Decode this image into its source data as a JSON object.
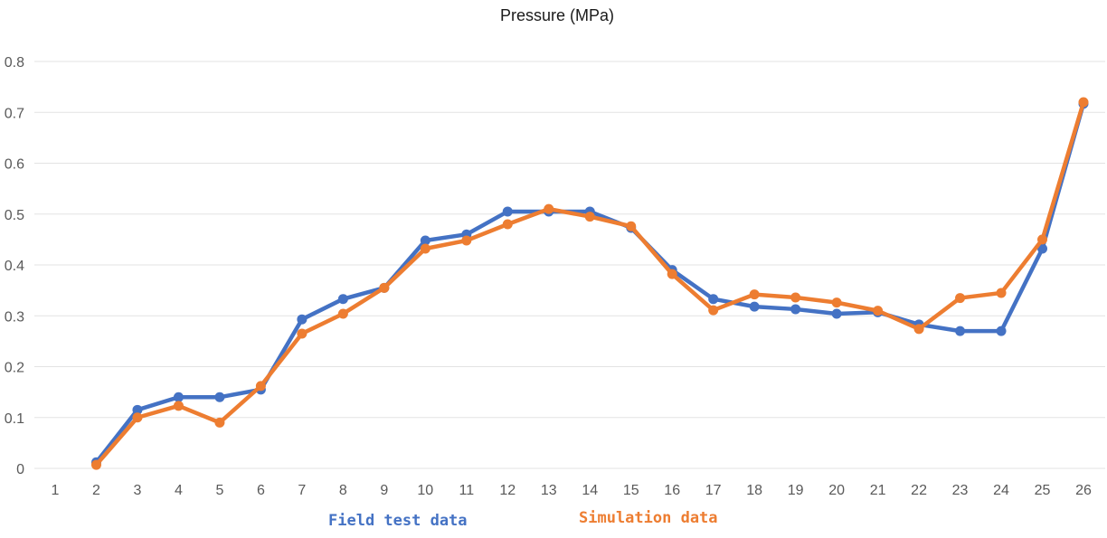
{
  "chart_data": {
    "type": "line",
    "title": "Pressure (MPa)",
    "xlabel": "",
    "ylabel": "",
    "categories": [
      "1",
      "2",
      "3",
      "4",
      "5",
      "6",
      "7",
      "8",
      "9",
      "10",
      "11",
      "12",
      "13",
      "14",
      "15",
      "16",
      "17",
      "18",
      "19",
      "20",
      "21",
      "22",
      "23",
      "24",
      "25",
      "26"
    ],
    "yticks": [
      "0",
      "0.1",
      "0.2",
      "0.3",
      "0.4",
      "0.5",
      "0.6",
      "0.7",
      "0.8"
    ],
    "ylim": [
      0,
      0.8
    ],
    "grid": true,
    "legend_position": "bottom",
    "series": [
      {
        "name": "Field test data",
        "color": "#4472c4",
        "values": [
          null,
          0.012,
          0.115,
          0.14,
          0.14,
          0.155,
          0.293,
          0.333,
          0.355,
          0.448,
          0.46,
          0.505,
          0.505,
          0.505,
          0.473,
          0.39,
          0.333,
          0.318,
          0.313,
          0.304,
          0.307,
          0.283,
          0.27,
          0.27,
          0.432,
          0.717
        ]
      },
      {
        "name": "Simulation data",
        "color": "#ed7d31",
        "values": [
          null,
          0.007,
          0.1,
          0.123,
          0.09,
          0.162,
          0.265,
          0.304,
          0.355,
          0.432,
          0.448,
          0.48,
          0.51,
          0.495,
          0.476,
          0.382,
          0.311,
          0.342,
          0.336,
          0.326,
          0.31,
          0.274,
          0.335,
          0.345,
          0.45,
          0.72
        ]
      }
    ]
  }
}
